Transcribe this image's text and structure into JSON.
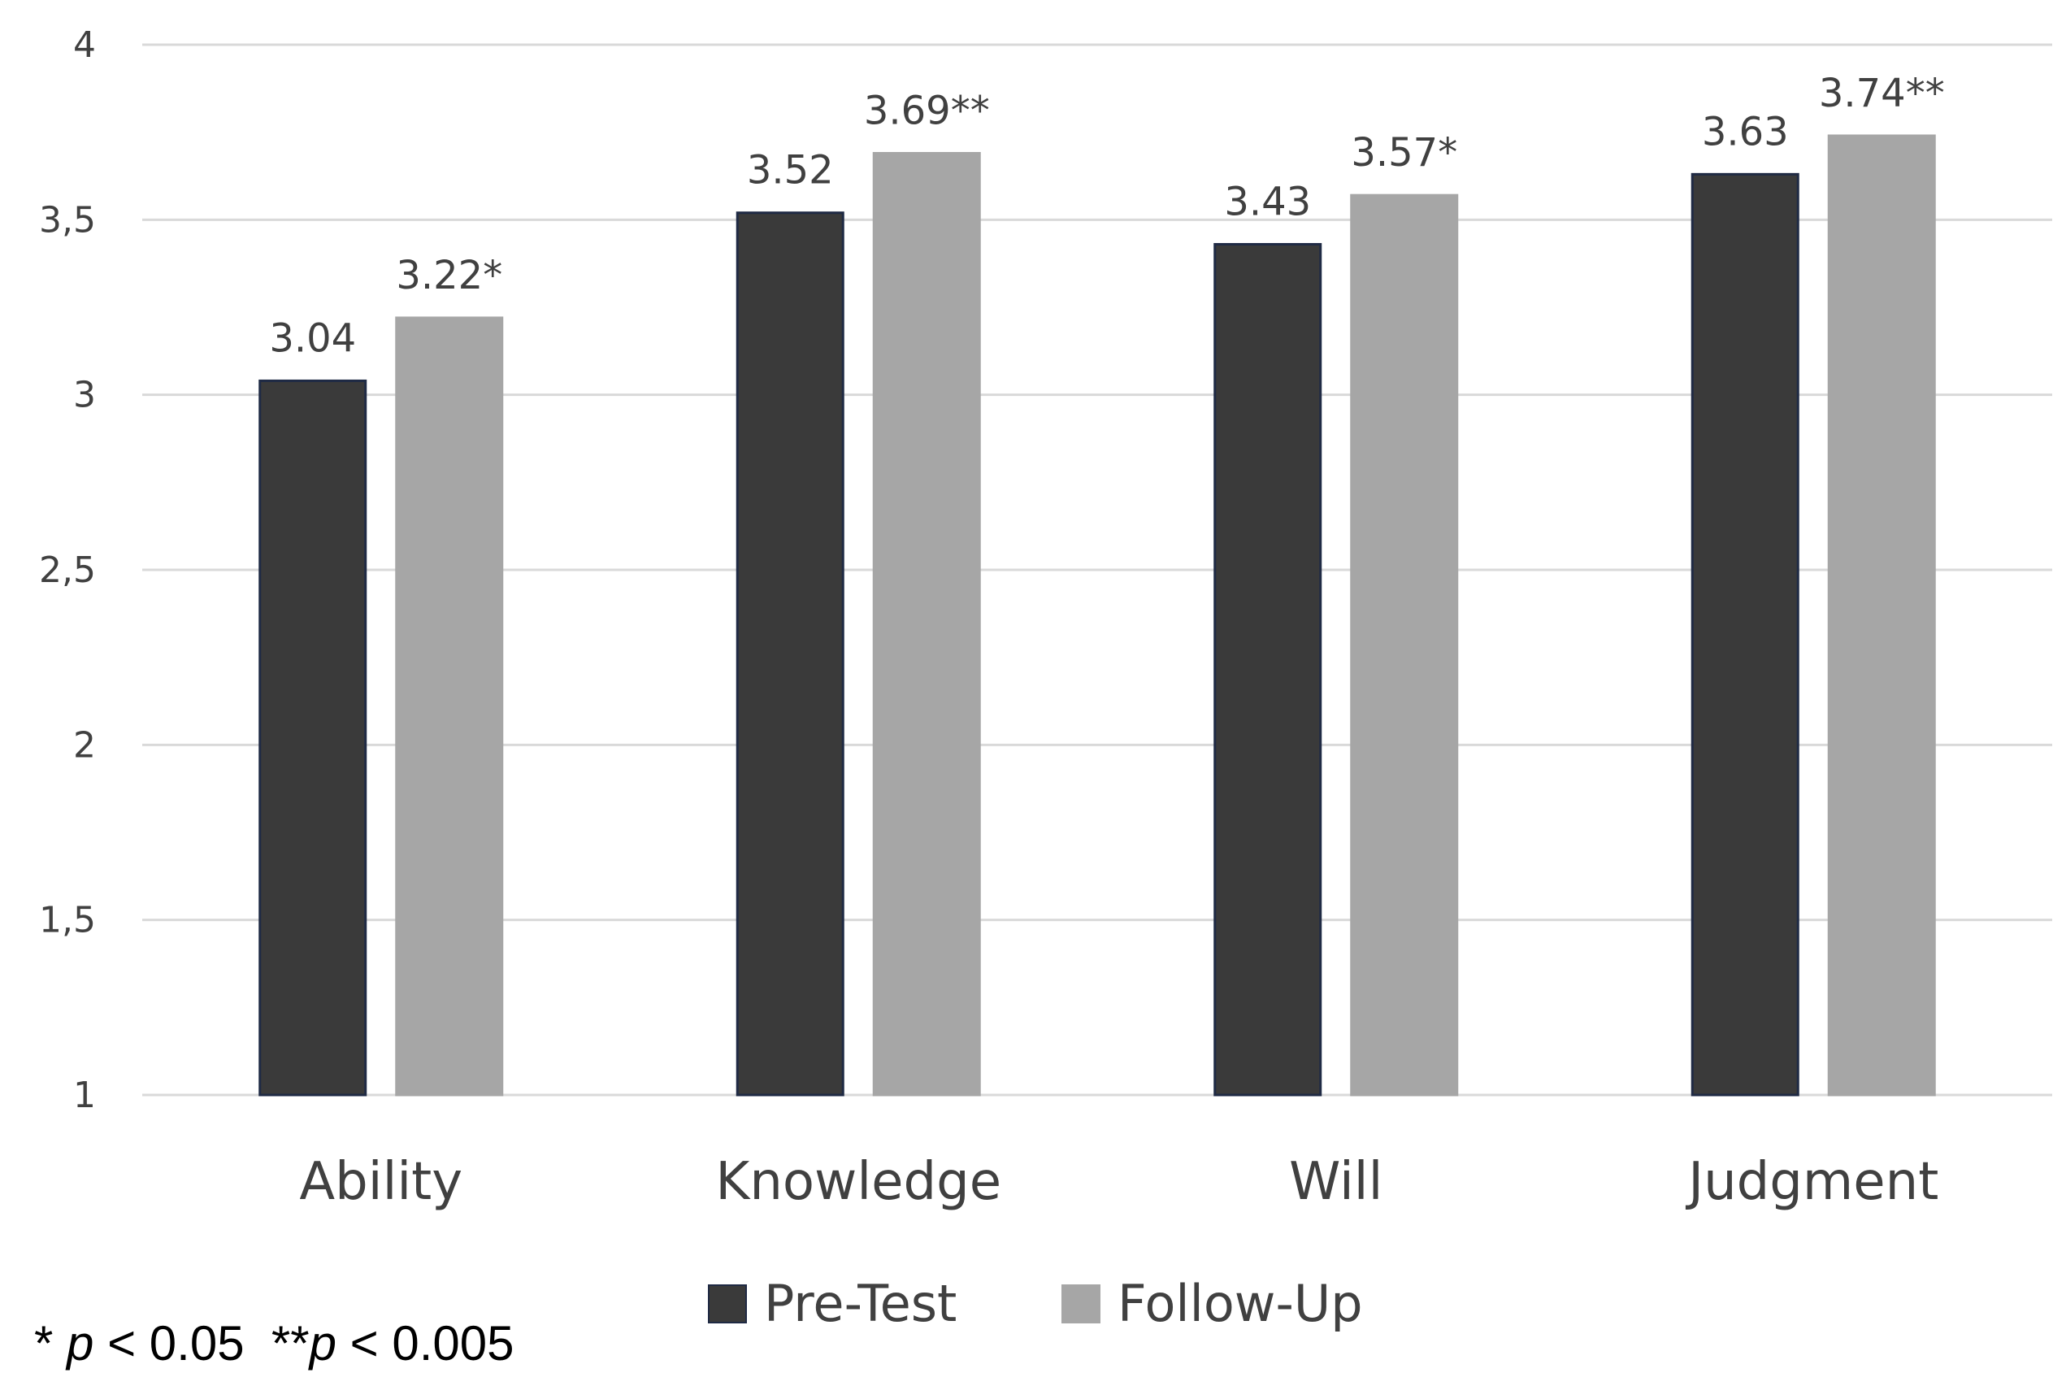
{
  "chart_data": {
    "type": "bar",
    "categories": [
      "Ability",
      "Knowledge",
      "Will",
      "Judgment"
    ],
    "series": [
      {
        "name": "Pre-Test",
        "values": [
          3.04,
          3.52,
          3.43,
          3.63
        ],
        "labels": [
          "3.04",
          "3.52",
          "3.43",
          "3.63"
        ],
        "color": "#3a3a3a",
        "stroke": "#1f2a44"
      },
      {
        "name": "Follow-Up",
        "values": [
          3.22,
          3.69,
          3.57,
          3.74
        ],
        "labels": [
          "3.22*",
          "3.69**",
          "3.57*",
          "3.74**"
        ],
        "color": "#a6a6a6",
        "stroke": "#a6a6a6"
      }
    ],
    "ylim": [
      1,
      4
    ],
    "yticks": [
      1,
      1.5,
      2,
      2.5,
      3,
      3.5,
      4
    ],
    "ytick_labels": [
      "1",
      "1,5",
      "2",
      "2,5",
      "3",
      "3,5",
      "4"
    ],
    "grid": true,
    "legend_position": "bottom"
  },
  "footnote": {
    "sig1_marker": "* ",
    "sig1_p": "p",
    "sig1_value": " < 0.05  ",
    "sig2_marker": "**",
    "sig2_p": "p",
    "sig2_value": " < 0.005"
  }
}
